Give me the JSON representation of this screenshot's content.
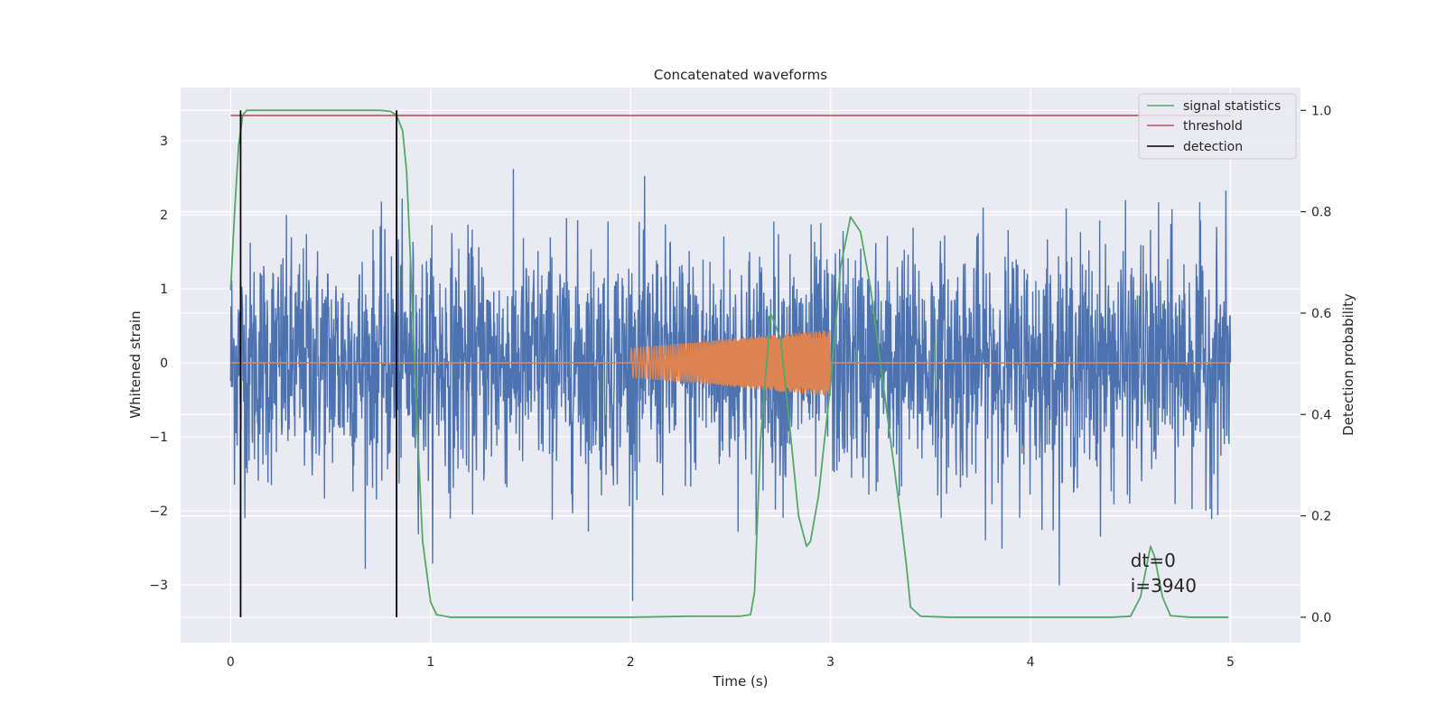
{
  "chart_data": {
    "type": "line",
    "title": "Concatenated waveforms",
    "xlabel": "Time (s)",
    "ylabel_left": "Whitened strain",
    "ylabel_right": "Detection probability",
    "xlim": [
      -0.25,
      5.35
    ],
    "ylim_left": [
      -3.78,
      3.72
    ],
    "ylim_right": [
      -0.05,
      1.045
    ],
    "x_ticks": [
      "0",
      "1",
      "2",
      "3",
      "4",
      "5"
    ],
    "y_left_ticks": [
      "−3",
      "−2",
      "−1",
      "0",
      "1",
      "2",
      "3"
    ],
    "y_right_ticks": [
      "0.0",
      "0.2",
      "0.4",
      "0.6",
      "0.8",
      "1.0"
    ],
    "grid": true,
    "legend": {
      "placement": "top-right",
      "entries": [
        {
          "label": "signal statistics",
          "color": "#55a868"
        },
        {
          "label": "threshold",
          "color": "#c44e52"
        },
        {
          "label": "detection",
          "color": "#000000"
        }
      ]
    },
    "series": [
      {
        "label": "whitened strain (noise)",
        "axis": "left",
        "color": "#4c72b0",
        "x_range": [
          0,
          5
        ],
        "approx_amplitude_std": 0.8,
        "approx_peak": 3.0
      },
      {
        "label": "injected waveform",
        "axis": "left",
        "color": "#dd8452",
        "x_start": 2.0,
        "x_end": 3.0,
        "amplitude_start": 0.2,
        "amplitude_end": 0.45
      },
      {
        "label": "signal statistics",
        "axis": "right",
        "color": "#55a868",
        "x": [
          0.0,
          0.02,
          0.04,
          0.06,
          0.08,
          0.1,
          0.2,
          0.5,
          0.75,
          0.8,
          0.83,
          0.86,
          0.88,
          0.9,
          0.93,
          0.96,
          1.0,
          1.03,
          1.1,
          1.5,
          2.0,
          2.3,
          2.55,
          2.6,
          2.62,
          2.65,
          2.7,
          2.75,
          2.8,
          2.84,
          2.88,
          2.9,
          2.94,
          3.0,
          3.05,
          3.1,
          3.15,
          3.2,
          3.25,
          3.3,
          3.35,
          3.38,
          3.4,
          3.45,
          3.6,
          4.4,
          4.5,
          4.55,
          4.58,
          4.6,
          4.62,
          4.66,
          4.7,
          4.8,
          4.99
        ],
        "y": [
          0.645,
          0.8,
          0.93,
          0.99,
          1.0,
          1.0,
          1.0,
          1.0,
          1.0,
          0.998,
          0.99,
          0.96,
          0.88,
          0.7,
          0.4,
          0.15,
          0.03,
          0.005,
          0.0,
          0.0,
          0.0,
          0.002,
          0.002,
          0.005,
          0.05,
          0.35,
          0.6,
          0.55,
          0.36,
          0.2,
          0.14,
          0.15,
          0.24,
          0.46,
          0.69,
          0.79,
          0.76,
          0.65,
          0.5,
          0.35,
          0.2,
          0.1,
          0.02,
          0.002,
          0.0,
          0.0,
          0.002,
          0.04,
          0.1,
          0.14,
          0.12,
          0.04,
          0.003,
          0.0,
          0.0
        ]
      },
      {
        "label": "threshold",
        "axis": "right",
        "color": "#c44e52",
        "x": [
          0,
          5
        ],
        "y": [
          0.99,
          0.99
        ]
      },
      {
        "label": "detection",
        "axis": "right",
        "color": "#000000",
        "x_positions": [
          0.05,
          0.83
        ],
        "y_range": [
          0.0,
          1.0
        ]
      }
    ],
    "annotations": [
      {
        "text": "dt=0",
        "x": 4.5,
        "y_right": 0.1
      },
      {
        "text": "i=3940",
        "x": 4.5,
        "y_right": 0.05
      }
    ]
  }
}
